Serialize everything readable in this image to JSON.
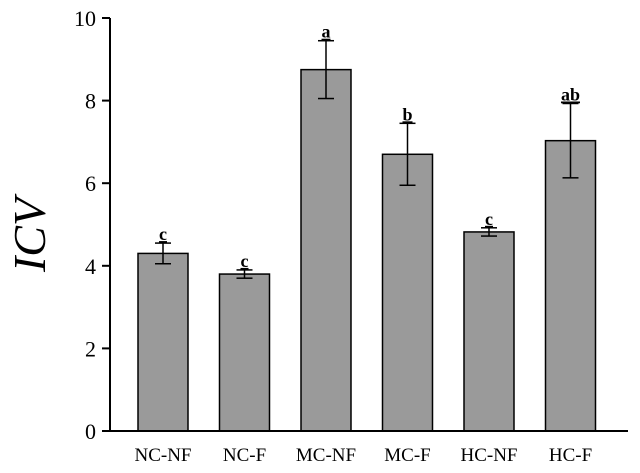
{
  "chart_data": {
    "type": "bar",
    "ylabel": "ICV",
    "xlabel": "",
    "ylim": [
      0,
      10
    ],
    "yticks": [
      0,
      2,
      4,
      6,
      8,
      10
    ],
    "categories": [
      "NC-NF",
      "NC-F",
      "MC-NF",
      "MC-F",
      "HC-NF",
      "HC-F"
    ],
    "values": [
      4.3,
      3.8,
      8.75,
      6.7,
      4.82,
      7.03
    ],
    "errors": [
      0.25,
      0.1,
      0.7,
      0.75,
      0.1,
      0.9
    ],
    "significance": [
      "c",
      "c",
      "a",
      "b",
      "c",
      "ab"
    ],
    "bar_color": "#9a9a9a",
    "grid": false
  }
}
